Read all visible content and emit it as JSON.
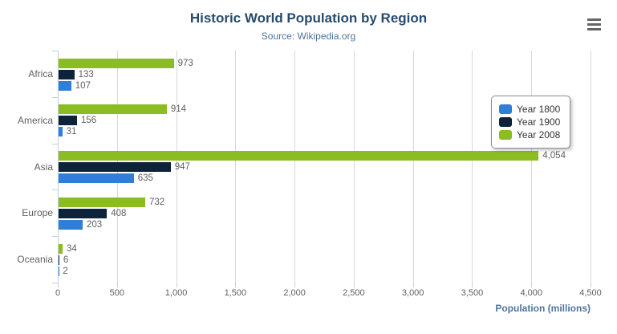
{
  "chart_data": {
    "type": "bar",
    "title": "Historic World Population by Region",
    "subtitle": "Source: Wikipedia.org",
    "categories": [
      "Africa",
      "America",
      "Asia",
      "Europe",
      "Oceania"
    ],
    "series": [
      {
        "name": "Year 1800",
        "color": "#2f7ed8",
        "values": [
          107,
          31,
          635,
          203,
          2
        ]
      },
      {
        "name": "Year 1900",
        "color": "#0d233a",
        "values": [
          133,
          156,
          947,
          408,
          6
        ]
      },
      {
        "name": "Year 2008",
        "color": "#8bbc21",
        "values": [
          973,
          914,
          4054,
          732,
          34
        ]
      }
    ],
    "xlabel": "Population (millions)",
    "ylabel": "",
    "value_axis": {
      "min": 0,
      "max": 4500,
      "tick_interval": 500,
      "tick_labels": [
        "0",
        "500",
        "1,000",
        "1,500",
        "2,000",
        "2,500",
        "3,000",
        "3,500",
        "4,000",
        "4,500"
      ]
    },
    "legend_position": "right",
    "grid": true,
    "data_labels_visible": true
  },
  "menu": {
    "icon": "hamburger-icon"
  },
  "colors": {
    "title": "#274b6d",
    "subtitle": "#4d759e",
    "axis_title": "#4d759e",
    "labels": "#606060",
    "grid_line": "#d8d8d8",
    "axis_line": "#c0d0e0",
    "legend_border": "#909090",
    "legend_text": "#333333",
    "menu_icon": "#666666"
  }
}
